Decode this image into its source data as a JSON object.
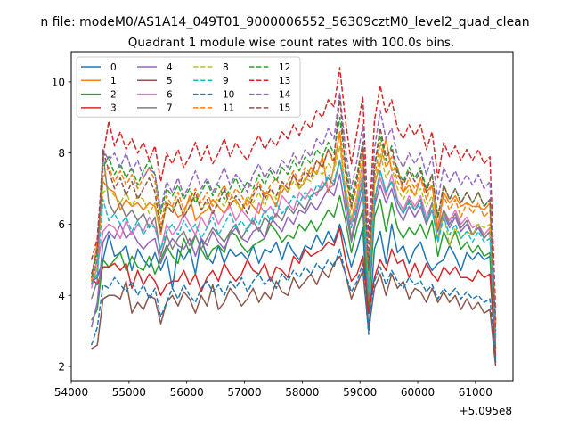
{
  "chart_data": {
    "type": "line",
    "suptitle": "n file: modeM0/AS1A14_049T01_9000006552_56309cztM0_level2_quad_clean",
    "title": "Quadrant 1 module wise count rates with 100.0s bins.",
    "xlabel": "",
    "ylabel": "",
    "x_offset_label": "+5.095e8",
    "xlim": [
      54000,
      61650
    ],
    "ylim": [
      1.6,
      10.85
    ],
    "xticks": [
      54000,
      55000,
      56000,
      57000,
      58000,
      59000,
      60000,
      61000
    ],
    "xtick_labels": [
      "54000",
      "55000",
      "56000",
      "57000",
      "58000",
      "59000",
      "60000",
      "61000"
    ],
    "yticks": [
      2,
      4,
      6,
      8,
      10
    ],
    "ytick_labels": [
      "2",
      "4",
      "6",
      "8",
      "10"
    ],
    "grid": false,
    "legend_position": "top-left",
    "legend_columns": 4,
    "x_start": 54350,
    "x_step": 100,
    "series": [
      {
        "name": "0",
        "color": "#1f77b4",
        "dash": "solid",
        "values": [
          4.4,
          4.5,
          5.0,
          5.7,
          5.1,
          5.2,
          5.4,
          4.7,
          5.3,
          5.0,
          4.8,
          5.2,
          4.7,
          5.1,
          4.2,
          5.3,
          5.0,
          5.3,
          4.6,
          5.6,
          5.1,
          4.9,
          5.4,
          4.9,
          5.3,
          5.1,
          5.2,
          5.0,
          5.4,
          4.9,
          5.3,
          5.2,
          5.5,
          5.0,
          5.5,
          5.2,
          5.0,
          5.4,
          5.3,
          5.7,
          5.4,
          5.8,
          5.5,
          6.0,
          5.4,
          4.8,
          5.3,
          5.9,
          3.0,
          5.3,
          5.8,
          4.9,
          6.0,
          5.2,
          5.4,
          4.9,
          5.3,
          5.5,
          5.0,
          4.7,
          4.9,
          5.0,
          5.4,
          5.1,
          4.7,
          5.2,
          5.0,
          5.2,
          5.0,
          5.1,
          2.1
        ]
      },
      {
        "name": "1",
        "color": "#ff7f0e",
        "dash": "solid",
        "values": [
          4.4,
          5.5,
          7.2,
          7.0,
          6.9,
          6.4,
          6.7,
          6.5,
          6.6,
          6.4,
          6.6,
          6.5,
          5.7,
          6.6,
          6.5,
          6.2,
          6.3,
          6.8,
          6.1,
          6.3,
          6.4,
          6.7,
          6.5,
          6.3,
          6.6,
          6.7,
          6.4,
          6.7,
          6.5,
          6.3,
          6.9,
          6.8,
          6.5,
          7.1,
          6.9,
          7.4,
          7.0,
          7.2,
          7.6,
          7.4,
          7.9,
          6.9,
          7.6,
          8.6,
          6.6,
          6.1,
          6.8,
          7.8,
          4.4,
          7.1,
          7.7,
          8.4,
          7.5,
          7.6,
          6.9,
          7.1,
          6.8,
          7.3,
          6.9,
          7.1,
          5.9,
          6.9,
          6.6,
          6.8,
          6.5,
          6.6,
          6.5,
          6.5,
          6.4,
          6.6,
          3.2
        ]
      },
      {
        "name": "2",
        "color": "#2ca02c",
        "dash": "solid",
        "values": [
          3.3,
          3.6,
          5.0,
          4.8,
          5.0,
          5.2,
          4.7,
          5.1,
          4.8,
          4.7,
          5.1,
          4.6,
          5.0,
          5.4,
          5.1,
          4.9,
          5.6,
          5.2,
          5.7,
          5.3,
          5.0,
          5.3,
          5.4,
          5.2,
          5.8,
          5.7,
          5.4,
          5.2,
          5.4,
          5.5,
          5.6,
          6.0,
          5.8,
          5.5,
          5.7,
          5.6,
          6.0,
          5.8,
          6.1,
          5.8,
          6.1,
          6.4,
          6.2,
          6.8,
          6.1,
          5.2,
          5.9,
          6.4,
          3.5,
          6.2,
          6.7,
          5.8,
          6.6,
          5.9,
          5.6,
          5.9,
          5.7,
          6.0,
          5.6,
          6.1,
          5.1,
          5.8,
          5.4,
          5.8,
          5.3,
          5.5,
          5.2,
          5.4,
          5.1,
          5.2,
          2.5
        ]
      },
      {
        "name": "3",
        "color": "#d62728",
        "dash": "solid",
        "values": [
          4.5,
          4.3,
          4.8,
          4.8,
          4.9,
          4.7,
          4.9,
          4.2,
          4.7,
          4.3,
          4.6,
          4.4,
          4.0,
          4.3,
          4.4,
          4.4,
          4.7,
          4.3,
          4.6,
          4.1,
          4.5,
          4.7,
          4.4,
          4.9,
          4.6,
          4.4,
          4.6,
          5.0,
          4.7,
          4.6,
          4.9,
          4.4,
          4.8,
          4.7,
          4.5,
          5.1,
          4.9,
          5.3,
          5.1,
          5.2,
          5.3,
          5.5,
          5.4,
          5.9,
          5.0,
          4.4,
          4.6,
          5.1,
          3.5,
          4.5,
          5.0,
          4.7,
          5.3,
          4.9,
          5.0,
          4.5,
          4.9,
          4.5,
          4.9,
          4.6,
          4.4,
          4.8,
          4.6,
          4.8,
          4.5,
          4.5,
          4.4,
          4.7,
          4.5,
          4.6,
          2.3
        ]
      },
      {
        "name": "4",
        "color": "#9467bd",
        "dash": "solid",
        "values": [
          3.1,
          3.8,
          5.5,
          5.8,
          5.6,
          6.0,
          5.6,
          5.8,
          5.5,
          5.3,
          5.5,
          5.6,
          4.9,
          5.3,
          5.6,
          5.4,
          5.3,
          5.6,
          5.1,
          5.6,
          5.4,
          5.8,
          5.5,
          5.3,
          5.7,
          5.9,
          5.6,
          5.5,
          5.8,
          5.9,
          5.6,
          6.2,
          6.0,
          5.8,
          6.2,
          6.0,
          6.4,
          6.3,
          6.6,
          6.4,
          6.7,
          7.0,
          6.8,
          7.4,
          6.4,
          5.5,
          6.2,
          6.9,
          3.9,
          6.5,
          7.1,
          6.6,
          7.0,
          6.4,
          6.1,
          6.5,
          6.2,
          6.5,
          6.0,
          6.4,
          5.6,
          6.3,
          5.9,
          6.2,
          5.8,
          6.0,
          5.7,
          5.9,
          5.6,
          5.8,
          2.8
        ]
      },
      {
        "name": "5",
        "color": "#8c564b",
        "dash": "solid",
        "values": [
          2.5,
          2.6,
          3.9,
          4.0,
          4.0,
          3.9,
          4.4,
          3.5,
          3.8,
          3.6,
          4.0,
          3.9,
          3.2,
          3.8,
          4.0,
          3.7,
          4.1,
          3.9,
          3.5,
          4.0,
          3.7,
          4.3,
          3.6,
          3.8,
          4.2,
          4.0,
          3.7,
          3.9,
          4.2,
          3.8,
          4.1,
          3.9,
          4.4,
          4.1,
          4.0,
          4.5,
          4.2,
          4.4,
          4.6,
          4.3,
          4.7,
          4.5,
          4.9,
          5.1,
          4.6,
          3.9,
          4.3,
          4.7,
          3.0,
          4.2,
          4.6,
          4.0,
          4.6,
          4.2,
          4.4,
          3.9,
          4.2,
          4.1,
          3.8,
          4.2,
          3.8,
          4.1,
          3.8,
          4.0,
          3.6,
          3.9,
          3.6,
          3.8,
          3.5,
          3.6,
          2.0
        ]
      },
      {
        "name": "6",
        "color": "#e377c2",
        "dash": "solid",
        "values": [
          4.2,
          4.8,
          5.8,
          6.0,
          5.9,
          5.6,
          6.1,
          5.7,
          6.0,
          5.8,
          6.2,
          5.9,
          5.3,
          6.0,
          5.7,
          5.9,
          6.3,
          6.0,
          5.7,
          6.2,
          5.9,
          6.4,
          6.0,
          6.3,
          6.5,
          6.1,
          6.4,
          6.2,
          6.0,
          6.6,
          6.3,
          6.5,
          6.2,
          6.8,
          6.6,
          6.4,
          6.9,
          6.7,
          7.0,
          6.8,
          7.2,
          7.0,
          7.1,
          7.8,
          7.0,
          6.0,
          6.6,
          7.5,
          4.2,
          6.7,
          7.3,
          6.8,
          7.4,
          6.7,
          6.4,
          6.8,
          6.5,
          6.8,
          6.2,
          6.6,
          5.9,
          6.4,
          6.1,
          6.4,
          6.0,
          6.2,
          5.9,
          6.0,
          5.7,
          5.9,
          3.0
        ]
      },
      {
        "name": "7",
        "color": "#7f7f7f",
        "dash": "solid",
        "values": [
          3.9,
          4.4,
          8.0,
          6.6,
          6.3,
          6.6,
          6.2,
          6.4,
          6.1,
          6.3,
          5.9,
          6.2,
          5.1,
          5.7,
          5.3,
          5.6,
          5.8,
          5.4,
          5.7,
          5.3,
          5.6,
          5.9,
          5.7,
          5.5,
          5.8,
          6.0,
          5.6,
          5.9,
          6.1,
          5.8,
          6.2,
          6.0,
          6.3,
          6.1,
          6.5,
          6.3,
          6.6,
          6.4,
          6.8,
          6.9,
          7.0,
          7.3,
          7.1,
          7.8,
          6.8,
          5.6,
          6.4,
          7.2,
          3.9,
          6.6,
          7.5,
          6.9,
          7.2,
          6.6,
          6.3,
          6.7,
          6.4,
          6.7,
          6.0,
          6.6,
          5.8,
          6.4,
          6.0,
          6.3,
          5.9,
          6.1,
          5.7,
          6.0,
          5.6,
          5.8,
          2.6
        ]
      },
      {
        "name": "8",
        "color": "#bcbd22",
        "dash": "dashed",
        "values": [
          4.3,
          4.8,
          6.9,
          7.0,
          6.8,
          6.6,
          6.9,
          6.5,
          6.8,
          6.7,
          6.3,
          6.6,
          5.8,
          6.5,
          6.4,
          6.7,
          6.2,
          6.5,
          6.8,
          6.4,
          6.6,
          6.3,
          6.7,
          6.5,
          6.9,
          6.6,
          6.4,
          6.8,
          6.6,
          6.9,
          6.5,
          7.0,
          6.7,
          7.1,
          6.9,
          7.2,
          7.0,
          7.3,
          7.2,
          7.5,
          7.4,
          7.7,
          7.5,
          8.2,
          7.0,
          6.2,
          6.8,
          7.8,
          4.5,
          7.1,
          8.0,
          7.3,
          7.6,
          7.0,
          6.7,
          7.0,
          6.8,
          7.0,
          6.5,
          6.8,
          5.5,
          6.3,
          5.4,
          5.9,
          5.6,
          5.8,
          5.7,
          6.0,
          5.9,
          6.0,
          3.1
        ]
      },
      {
        "name": "9",
        "color": "#17becf",
        "dash": "dashed",
        "values": [
          4.3,
          4.6,
          6.7,
          6.1,
          6.3,
          6.0,
          6.2,
          5.8,
          6.1,
          5.7,
          6.0,
          5.9,
          5.3,
          5.8,
          6.0,
          5.7,
          6.1,
          5.8,
          6.0,
          5.6,
          5.9,
          6.2,
          5.7,
          6.0,
          6.3,
          5.9,
          6.1,
          5.8,
          6.2,
          6.0,
          6.4,
          6.1,
          6.6,
          6.3,
          6.5,
          6.8,
          6.6,
          6.9,
          6.7,
          7.1,
          7.0,
          7.4,
          7.2,
          7.8,
          6.8,
          5.9,
          6.5,
          7.3,
          4.1,
          6.7,
          7.5,
          6.9,
          7.2,
          6.6,
          6.3,
          6.6,
          6.4,
          6.6,
          6.1,
          6.4,
          5.5,
          6.2,
          5.7,
          6.0,
          5.6,
          5.8,
          5.5,
          5.8,
          5.5,
          5.6,
          2.9
        ]
      },
      {
        "name": "10",
        "color": "#1f77b4",
        "dash": "dashed",
        "values": [
          2.6,
          3.1,
          4.3,
          4.2,
          4.5,
          4.3,
          4.1,
          4.4,
          4.0,
          4.3,
          3.9,
          4.2,
          3.4,
          3.8,
          4.2,
          3.9,
          4.3,
          4.0,
          3.8,
          4.2,
          4.4,
          4.1,
          4.3,
          4.0,
          4.4,
          4.2,
          4.5,
          4.1,
          4.4,
          4.6,
          4.3,
          4.5,
          4.2,
          4.6,
          4.4,
          4.7,
          4.5,
          4.8,
          4.6,
          4.9,
          4.7,
          5.0,
          4.8,
          5.3,
          4.6,
          4.1,
          4.4,
          4.9,
          2.9,
          4.4,
          4.8,
          4.3,
          4.7,
          4.4,
          4.2,
          4.5,
          4.3,
          4.4,
          4.1,
          4.3,
          3.9,
          4.2,
          4.0,
          4.2,
          3.9,
          4.1,
          3.9,
          4.0,
          3.8,
          3.9,
          2.2
        ]
      },
      {
        "name": "11",
        "color": "#ff7f0e",
        "dash": "dashed",
        "values": [
          4.4,
          5.0,
          7.3,
          7.6,
          7.2,
          7.5,
          7.1,
          7.4,
          7.0,
          7.3,
          7.6,
          7.2,
          6.0,
          6.8,
          6.5,
          6.9,
          6.4,
          6.7,
          7.0,
          6.6,
          6.9,
          6.5,
          6.8,
          7.1,
          6.7,
          7.0,
          6.8,
          6.5,
          6.9,
          7.2,
          6.8,
          7.1,
          7.3,
          6.9,
          7.2,
          7.5,
          7.2,
          7.6,
          7.4,
          7.8,
          7.6,
          8.1,
          7.7,
          8.6,
          7.4,
          6.4,
          7.1,
          8.1,
          4.6,
          7.3,
          8.3,
          7.6,
          7.9,
          7.2,
          6.9,
          7.3,
          7.0,
          7.3,
          6.7,
          7.1,
          5.9,
          6.8,
          6.4,
          6.7,
          6.2,
          6.6,
          6.3,
          6.6,
          6.2,
          6.4,
          3.2
        ]
      },
      {
        "name": "12",
        "color": "#2ca02c",
        "dash": "dashed",
        "values": [
          4.5,
          5.2,
          7.6,
          7.9,
          7.4,
          7.7,
          7.3,
          7.6,
          7.1,
          7.5,
          7.8,
          7.4,
          6.3,
          7.0,
          6.8,
          7.1,
          6.7,
          7.0,
          6.6,
          6.9,
          7.2,
          6.8,
          7.1,
          6.7,
          7.0,
          7.3,
          6.9,
          7.2,
          7.0,
          7.4,
          7.1,
          7.5,
          7.2,
          7.6,
          7.4,
          7.8,
          7.5,
          7.9,
          7.7,
          8.1,
          7.9,
          8.3,
          8.0,
          9.0,
          7.7,
          6.7,
          7.4,
          8.3,
          4.8,
          7.6,
          8.5,
          7.8,
          8.2,
          7.5,
          7.2,
          7.6,
          7.3,
          7.6,
          7.0,
          7.4,
          6.2,
          7.1,
          6.7,
          7.0,
          6.6,
          6.9,
          6.6,
          6.9,
          6.5,
          6.7,
          3.3
        ]
      },
      {
        "name": "13",
        "color": "#d62728",
        "dash": "dashed",
        "values": [
          5.0,
          5.6,
          7.9,
          8.9,
          8.2,
          8.6,
          8.1,
          8.4,
          8.0,
          8.3,
          7.8,
          8.2,
          7.2,
          8.0,
          7.7,
          8.1,
          7.6,
          7.9,
          8.3,
          7.8,
          8.2,
          7.7,
          8.0,
          8.4,
          7.9,
          8.3,
          8.0,
          7.8,
          8.2,
          8.5,
          8.1,
          8.4,
          8.2,
          8.6,
          8.4,
          8.8,
          8.5,
          8.9,
          8.7,
          9.2,
          9.0,
          9.5,
          9.3,
          10.4,
          8.9,
          7.7,
          8.6,
          9.6,
          5.6,
          8.9,
          9.9,
          9.1,
          9.5,
          8.7,
          8.4,
          8.8,
          8.5,
          8.8,
          8.1,
          8.6,
          7.3,
          8.3,
          7.9,
          8.2,
          7.8,
          8.1,
          7.8,
          8.1,
          7.7,
          7.9,
          3.6
        ]
      },
      {
        "name": "14",
        "color": "#9467bd",
        "dash": "dashed",
        "values": [
          4.3,
          5.0,
          8.1,
          7.8,
          8.0,
          7.6,
          8.0,
          7.5,
          7.8,
          7.3,
          7.6,
          7.4,
          6.4,
          7.2,
          6.9,
          7.3,
          6.8,
          7.1,
          7.5,
          7.0,
          7.3,
          6.9,
          7.2,
          7.6,
          7.1,
          7.4,
          7.2,
          6.9,
          7.4,
          7.7,
          7.3,
          7.6,
          7.4,
          7.8,
          7.6,
          8.0,
          7.7,
          8.1,
          7.9,
          8.4,
          8.2,
          8.7,
          8.4,
          9.7,
          8.1,
          7.0,
          7.8,
          8.8,
          5.1,
          8.1,
          9.2,
          8.4,
          8.7,
          7.9,
          7.6,
          8.0,
          7.7,
          8.0,
          7.4,
          7.9,
          6.7,
          7.6,
          7.2,
          7.5,
          7.1,
          7.4,
          7.1,
          7.4,
          7.0,
          7.2,
          3.3
        ]
      },
      {
        "name": "15",
        "color": "#8c564b",
        "dash": "dashed",
        "values": [
          4.6,
          5.3,
          8.1,
          7.5,
          7.0,
          7.3,
          6.8,
          7.2,
          6.7,
          7.0,
          7.3,
          6.9,
          5.8,
          6.6,
          6.3,
          6.7,
          6.2,
          6.5,
          6.9,
          6.4,
          6.7,
          6.3,
          6.6,
          7.0,
          6.5,
          6.8,
          6.6,
          6.3,
          6.8,
          7.1,
          6.7,
          7.0,
          6.8,
          7.2,
          7.0,
          7.4,
          7.1,
          7.5,
          7.3,
          7.8,
          7.6,
          8.1,
          7.8,
          9.6,
          7.5,
          6.5,
          7.3,
          8.3,
          4.7,
          7.6,
          8.7,
          7.9,
          8.1,
          7.4,
          7.1,
          7.5,
          7.2,
          7.5,
          6.9,
          7.4,
          6.2,
          7.1,
          6.7,
          7.0,
          6.6,
          6.9,
          6.6,
          6.9,
          6.5,
          6.7,
          3.0
        ]
      }
    ]
  }
}
